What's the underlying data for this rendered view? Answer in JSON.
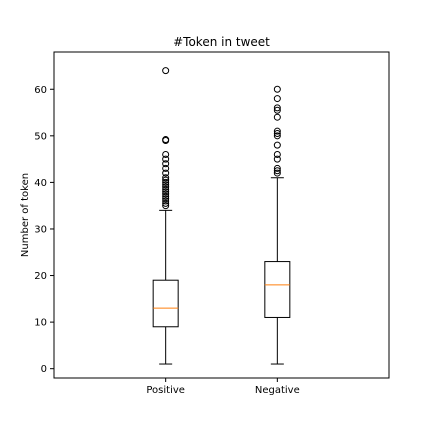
{
  "chart_data": {
    "type": "boxplot",
    "title": "#Token in tweet",
    "xlabel": "",
    "ylabel": "Number of token",
    "ylim": [
      -2,
      68
    ],
    "yticks": [
      0,
      10,
      20,
      30,
      40,
      50,
      60
    ],
    "grid": false,
    "categories": [
      "Positive",
      "Negative"
    ],
    "boxes": [
      {
        "label": "Positive",
        "whisker_low": 1,
        "q1": 9,
        "median": 13,
        "q3": 19,
        "whisker_high": 34,
        "outliers": [
          35,
          35.5,
          36,
          36.5,
          37,
          37.5,
          38,
          38.5,
          39,
          39.5,
          40,
          40.5,
          41,
          42,
          43,
          44,
          45,
          46,
          49,
          49.2,
          64
        ]
      },
      {
        "label": "Negative",
        "whisker_low": 1,
        "q1": 11,
        "median": 18,
        "q3": 23,
        "whisker_high": 41,
        "outliers": [
          42,
          42.5,
          43,
          45,
          46,
          48,
          50,
          50.5,
          51,
          54,
          55.5,
          56,
          58,
          60
        ]
      }
    ],
    "colors": {
      "box": "#000000",
      "median": "#ff7f0e",
      "outlier": "#000000"
    }
  }
}
